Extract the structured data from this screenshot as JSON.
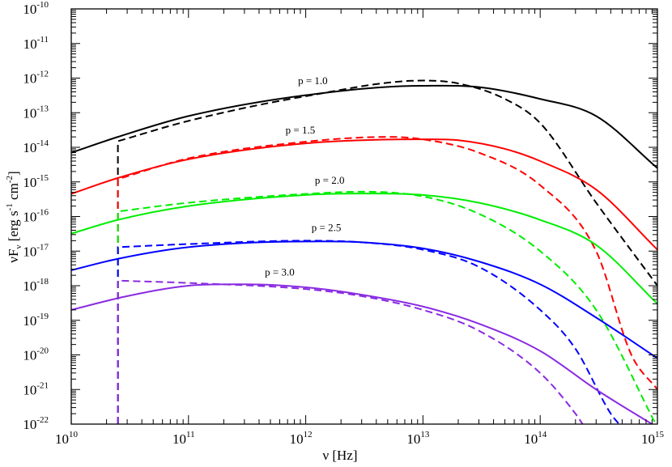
{
  "chart_data": {
    "type": "line",
    "title": "",
    "xlabel": "ν [Hz]",
    "ylabel": "νF_ν [erg s^-1 cm^-2]",
    "xscale": "log",
    "yscale": "log",
    "xlim": [
      10000000000.0,
      1000000000000000.0
    ],
    "ylim": [
      1e-22,
      1e-10
    ],
    "grid": false,
    "legend": "none",
    "x_ticks": [
      {
        "base": "10",
        "exp": "10",
        "value": 10000000000.0
      },
      {
        "base": "10",
        "exp": "11",
        "value": 100000000000.0
      },
      {
        "base": "10",
        "exp": "12",
        "value": 1000000000000.0
      },
      {
        "base": "10",
        "exp": "13",
        "value": 10000000000000.0
      },
      {
        "base": "10",
        "exp": "14",
        "value": 100000000000000.0
      },
      {
        "base": "10",
        "exp": "15",
        "value": 1000000000000000.0
      }
    ],
    "y_ticks": [
      {
        "base": "10",
        "exp": "-22",
        "value": 1e-22
      },
      {
        "base": "10",
        "exp": "-21",
        "value": 1e-21
      },
      {
        "base": "10",
        "exp": "-20",
        "value": 1e-20
      },
      {
        "base": "10",
        "exp": "-19",
        "value": 1e-19
      },
      {
        "base": "10",
        "exp": "-18",
        "value": 1e-18
      },
      {
        "base": "10",
        "exp": "-17",
        "value": 1e-17
      },
      {
        "base": "10",
        "exp": "-16",
        "value": 1e-16
      },
      {
        "base": "10",
        "exp": "-15",
        "value": 1e-15
      },
      {
        "base": "10",
        "exp": "-14",
        "value": 1e-14
      },
      {
        "base": "10",
        "exp": "-13",
        "value": 1e-13
      },
      {
        "base": "10",
        "exp": "-12",
        "value": 1e-12
      },
      {
        "base": "10",
        "exp": "-11",
        "value": 1e-11
      },
      {
        "base": "10",
        "exp": "-10",
        "value": 1e-10
      }
    ],
    "series": [
      {
        "label": "p = 1.0",
        "color": "#000000",
        "style": "solid",
        "x": [
          10000000000.0,
          25000000000.0,
          100000000000.0,
          1000000000000.0,
          10000000000000.0,
          30000000000000.0,
          100000000000000.0,
          300000000000000.0,
          1000000000000000.0
        ],
        "y": [
          7e-15,
          2e-14,
          8e-14,
          3.2e-13,
          6e-13,
          5.5e-13,
          2.5e-13,
          8e-14,
          2.5e-15
        ]
      },
      {
        "label": "",
        "color": "#000000",
        "style": "dashed",
        "x": [
          25000000000.0,
          25000000000.0,
          100000000000.0,
          1000000000000.0,
          10000000000000.0,
          20000000000000.0,
          50000000000000.0,
          100000000000000.0,
          300000000000000.0,
          1000000000000000.0
        ],
        "y": [
          1e-22,
          1.5e-14,
          5.8e-14,
          3e-13,
          8.5e-13,
          7e-13,
          2.5e-13,
          5e-14,
          2.5e-16,
          1e-18
        ]
      },
      {
        "label": "p = 1.5",
        "color": "#ff0000",
        "style": "solid",
        "x": [
          10000000000.0,
          25000000000.0,
          100000000000.0,
          1000000000000.0,
          10000000000000.0,
          20000000000000.0,
          50000000000000.0,
          100000000000000.0,
          300000000000000.0,
          1000000000000000.0
        ],
        "y": [
          4.5e-16,
          1.3e-15,
          4.5e-15,
          1.3e-14,
          1.7e-14,
          1.6e-14,
          9e-15,
          4e-15,
          6e-16,
          1.1e-17
        ]
      },
      {
        "label": "",
        "color": "#ff0000",
        "style": "dashed",
        "x": [
          25000000000.0,
          25000000000.0,
          100000000000.0,
          1000000000000.0,
          5000000000000.0,
          10000000000000.0,
          30000000000000.0,
          100000000000000.0,
          300000000000000.0,
          600000000000000.0,
          1000000000000000.0
        ],
        "y": [
          1e-22,
          1.2e-15,
          4.8e-15,
          1.45e-14,
          2e-14,
          1.7e-14,
          7e-15,
          8e-16,
          1e-17,
          1e-20,
          1e-21
        ]
      },
      {
        "label": "p = 2.0",
        "color": "#00ee00",
        "style": "solid",
        "x": [
          10000000000.0,
          25000000000.0,
          100000000000.0,
          1000000000000.0,
          3000000000000.0,
          10000000000000.0,
          30000000000000.0,
          100000000000000.0,
          300000000000000.0,
          1000000000000000.0
        ],
        "y": [
          3.2e-17,
          8e-17,
          2e-16,
          4.2e-16,
          4.6e-16,
          4.2e-16,
          2.5e-16,
          8e-17,
          1.5e-17,
          3e-19
        ]
      },
      {
        "label": "",
        "color": "#00ee00",
        "style": "dashed",
        "x": [
          25000000000.0,
          25000000000.0,
          100000000000.0,
          1000000000000.0,
          3000000000000.0,
          10000000000000.0,
          30000000000000.0,
          100000000000000.0,
          300000000000000.0,
          1000000000000000.0
        ],
        "y": [
          1e-22,
          1.4e-16,
          2.5e-16,
          4.5e-16,
          5.2e-16,
          3.8e-16,
          1.2e-16,
          1e-17,
          2e-19,
          8e-23
        ]
      },
      {
        "label": "p = 2.5",
        "color": "#0000ff",
        "style": "solid",
        "x": [
          10000000000.0,
          25000000000.0,
          100000000000.0,
          1000000000000.0,
          3000000000000.0,
          10000000000000.0,
          30000000000000.0,
          100000000000000.0,
          300000000000000.0,
          1000000000000000.0
        ],
        "y": [
          2.8e-18,
          6e-18,
          1.3e-17,
          1.9e-17,
          1.8e-17,
          1.2e-17,
          5e-18,
          1.1e-18,
          1.2e-19,
          8e-21
        ]
      },
      {
        "label": "",
        "color": "#0000ff",
        "style": "dashed",
        "x": [
          25000000000.0,
          25000000000.0,
          100000000000.0,
          1000000000000.0,
          3000000000000.0,
          10000000000000.0,
          30000000000000.0,
          100000000000000.0,
          200000000000000.0,
          400000000000000.0,
          500000000000000.0
        ],
        "y": [
          1e-22,
          1.3e-17,
          1.6e-17,
          2e-17,
          1.8e-17,
          1.1e-17,
          3.5e-18,
          2e-19,
          1.5e-20,
          2e-22,
          8e-23
        ]
      },
      {
        "label": "p = 3.0",
        "color": "#8a2be2",
        "style": "solid",
        "x": [
          10000000000.0,
          30000000000.0,
          100000000000.0,
          300000000000.0,
          1000000000000.0,
          3000000000000.0,
          10000000000000.0,
          30000000000000.0,
          100000000000000.0,
          300000000000000.0,
          1000000000000000.0
        ],
        "y": [
          2e-19,
          5e-19,
          1e-18,
          1.1e-18,
          9e-19,
          5.5e-19,
          2.5e-19,
          8e-20,
          1.3e-20,
          1e-21,
          8e-23
        ]
      },
      {
        "label": "",
        "color": "#8a2be2",
        "style": "dashed",
        "x": [
          25000000000.0,
          25000000000.0,
          100000000000.0,
          1000000000000.0,
          3000000000000.0,
          10000000000000.0,
          30000000000000.0,
          100000000000000.0,
          200000000000000.0,
          230000000000000.0
        ],
        "y": [
          1e-22,
          1.4e-18,
          1.2e-18,
          8e-19,
          5e-19,
          2e-19,
          5e-20,
          3e-21,
          2e-22,
          1e-22
        ]
      }
    ]
  }
}
